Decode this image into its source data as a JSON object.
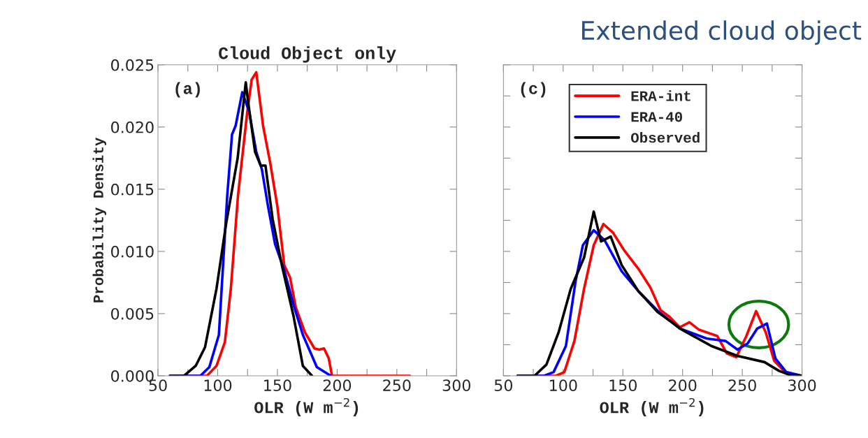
{
  "chart_data": [
    {
      "type": "line",
      "title": "Cloud Object only",
      "xlabel": "OLR (W m$^{−2}$)",
      "ylabel": "Probability Density",
      "annotations": [
        "(a)"
      ],
      "xlim": [
        50,
        300
      ],
      "ylim": [
        0,
        0.025
      ],
      "xticks": [
        50,
        {
          "value": 75,
          "label": null
        },
        100,
        {
          "value": 125,
          "label": null
        },
        150,
        {
          "value": 175,
          "label": null
        },
        200,
        {
          "value": 225,
          "label": null
        },
        250,
        {
          "value": 275,
          "label": null
        },
        300
      ],
      "yticks": [
        {
          "value": 0,
          "label": "0.000"
        },
        0.005,
        {
          "value": 0.01,
          "label": "0.010"
        },
        0.015,
        {
          "value": 0.02,
          "label": "0.020"
        },
        0.025
      ],
      "grid": false,
      "legend": false,
      "line_style": "solid",
      "series": [
        {
          "color": "#ff0000",
          "x": [
            60,
            91,
            99,
            106,
            111,
            117,
            124.5,
            128.4,
            132.3,
            138,
            144,
            150,
            155.7,
            160.6,
            165.4,
            173,
            181,
            185,
            189,
            193,
            195.7,
            261
          ],
          "values": [
            0,
            0,
            0.0008,
            0.0027,
            0.007,
            0.0145,
            0.021,
            0.0238,
            0.0244,
            0.0201,
            0.0171,
            0.0136,
            0.0089,
            0.0079,
            0.0055,
            0.0035,
            0.0022,
            0.0021,
            0.0022,
            0.0014,
            0,
            0
          ]
        },
        {
          "color": "#0000ff",
          "x": [
            60,
            85.5,
            93,
            101,
            108,
            112,
            115,
            120.6,
            126.4,
            132.3,
            137,
            142,
            148,
            155.7,
            163.5,
            171.3,
            183,
            194.7
          ],
          "values": [
            0,
            0,
            0.0007,
            0.0033,
            0.0145,
            0.0194,
            0.0201,
            0.0228,
            0.0212,
            0.018,
            0.0166,
            0.0137,
            0.0106,
            0.0085,
            0.0057,
            0.0033,
            0.0007,
            0
          ]
        },
        {
          "color": "#000000",
          "x": [
            60,
            71.8,
            81.6,
            89.4,
            99,
            107,
            116.7,
            123.5,
            125.5,
            131.3,
            136,
            140,
            146,
            153.7,
            163.5,
            171.3,
            179
          ],
          "values": [
            0,
            0,
            0.0008,
            0.0023,
            0.007,
            0.0122,
            0.0175,
            0.0236,
            0.022,
            0.018,
            0.0169,
            0.0169,
            0.0126,
            0.0089,
            0.0048,
            0.0008,
            0
          ]
        }
      ]
    },
    {
      "type": "line",
      "title": "Extended cloud object",
      "xlabel": "OLR (W m$^{−2}$)",
      "annotations": [
        "(c)"
      ],
      "xlim": [
        50,
        300
      ],
      "ylim": [
        0,
        0.025
      ],
      "xticks": [
        50,
        {
          "value": 75,
          "label": null
        },
        100,
        {
          "value": 125,
          "label": null
        },
        150,
        {
          "value": 175,
          "label": null
        },
        200,
        {
          "value": 225,
          "label": null
        },
        250,
        {
          "value": 275,
          "label": null
        },
        300
      ],
      "yticks": [
        0,
        0.0025,
        0.005,
        0.0075,
        0.01,
        0.0125,
        0.015,
        0.0175,
        0.02,
        0.0225,
        0.025
      ],
      "tick_labels": "x",
      "grid": false,
      "legend": "top",
      "line_style": "solid",
      "series": [
        {
          "name": "ERA-int",
          "color": "#ff0000",
          "x": [
            61.8,
            94,
            101,
            109.4,
            117.5,
            125.6,
            133.7,
            141.8,
            151,
            163,
            173,
            181.4,
            189.5,
            197.6,
            205.7,
            213.8,
            229,
            237,
            245,
            253.4,
            261.5,
            269.6,
            276.7,
            286.8,
            300
          ],
          "values": [
            0,
            0,
            0.0003,
            0.0028,
            0.007,
            0.0105,
            0.0122,
            0.0115,
            0.0101,
            0.0086,
            0.0071,
            0.0053,
            0.0047,
            0.0039,
            0.0043,
            0.0037,
            0.0032,
            0.0018,
            0.0015,
            0.0032,
            0.0052,
            0.0035,
            0.0012,
            0.0002,
            0
          ]
        },
        {
          "name": "ERA-40",
          "color": "#0000ff",
          "x": [
            61.8,
            84,
            92,
            102.3,
            110.4,
            116.5,
            125.6,
            134.7,
            149,
            163,
            179.4,
            197.6,
            220,
            236,
            246,
            254.4,
            262.5,
            270.6,
            277.7,
            286.8,
            300
          ],
          "values": [
            0,
            0,
            0.0003,
            0.0024,
            0.0076,
            0.0105,
            0.0117,
            0.0109,
            0.0084,
            0.0068,
            0.0052,
            0.0038,
            0.003,
            0.0028,
            0.0021,
            0.0026,
            0.0038,
            0.0042,
            0.0014,
            0.0003,
            0
          ]
        },
        {
          "name": "Observed",
          "color": "#000000",
          "x": [
            61.8,
            76,
            86,
            96.2,
            106.4,
            117.5,
            125.6,
            131.7,
            139.8,
            149,
            163,
            179.4,
            199.6,
            224,
            246,
            268.6,
            280.7,
            288.8,
            300
          ],
          "values": [
            0,
            0,
            0.0009,
            0.0035,
            0.007,
            0.0095,
            0.0132,
            0.0108,
            0.0112,
            0.0089,
            0.0068,
            0.0051,
            0.0037,
            0.0024,
            0.0016,
            0.0011,
            0.0004,
            0.0001,
            0
          ]
        }
      ]
    }
  ]
}
